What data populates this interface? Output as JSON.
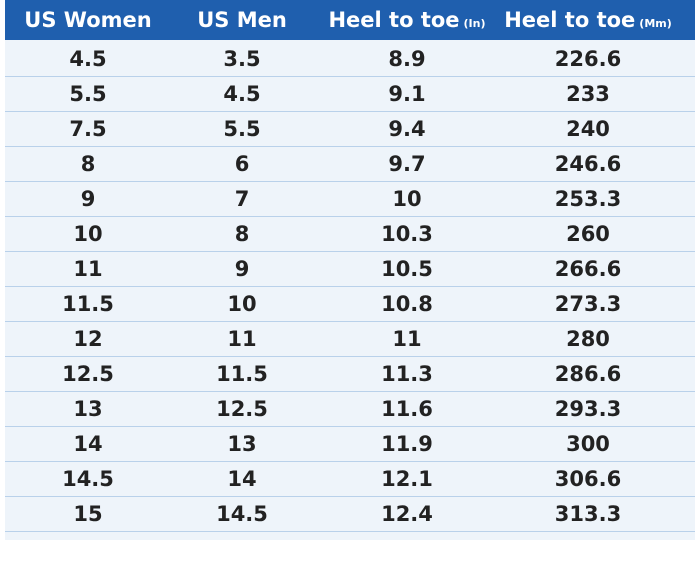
{
  "table": {
    "header": [
      {
        "text": "US Women"
      },
      {
        "text": "US Men"
      },
      {
        "text": "Heel to toe",
        "unit": "(In)"
      },
      {
        "text": "Heel to toe",
        "unit": "(Mm)"
      }
    ],
    "rows": [
      [
        "4.5",
        "3.5",
        "8.9",
        "226.6"
      ],
      [
        "5.5",
        "4.5",
        "9.1",
        "233"
      ],
      [
        "7.5",
        "5.5",
        "9.4",
        "240"
      ],
      [
        "8",
        "6",
        "9.7",
        "246.6"
      ],
      [
        "9",
        "7",
        "10",
        "253.3"
      ],
      [
        "10",
        "8",
        "10.3",
        "260"
      ],
      [
        "11",
        "9",
        "10.5",
        "266.6"
      ],
      [
        "11.5",
        "10",
        "10.8",
        "273.3"
      ],
      [
        "12",
        "11",
        "11",
        "280"
      ],
      [
        "12.5",
        "11.5",
        "11.3",
        "286.6"
      ],
      [
        "13",
        "12.5",
        "11.6",
        "293.3"
      ],
      [
        "14",
        "13",
        "11.9",
        "300"
      ],
      [
        "14.5",
        "14",
        "12.1",
        "306.6"
      ],
      [
        "15",
        "14.5",
        "12.4",
        "313.3"
      ]
    ]
  }
}
